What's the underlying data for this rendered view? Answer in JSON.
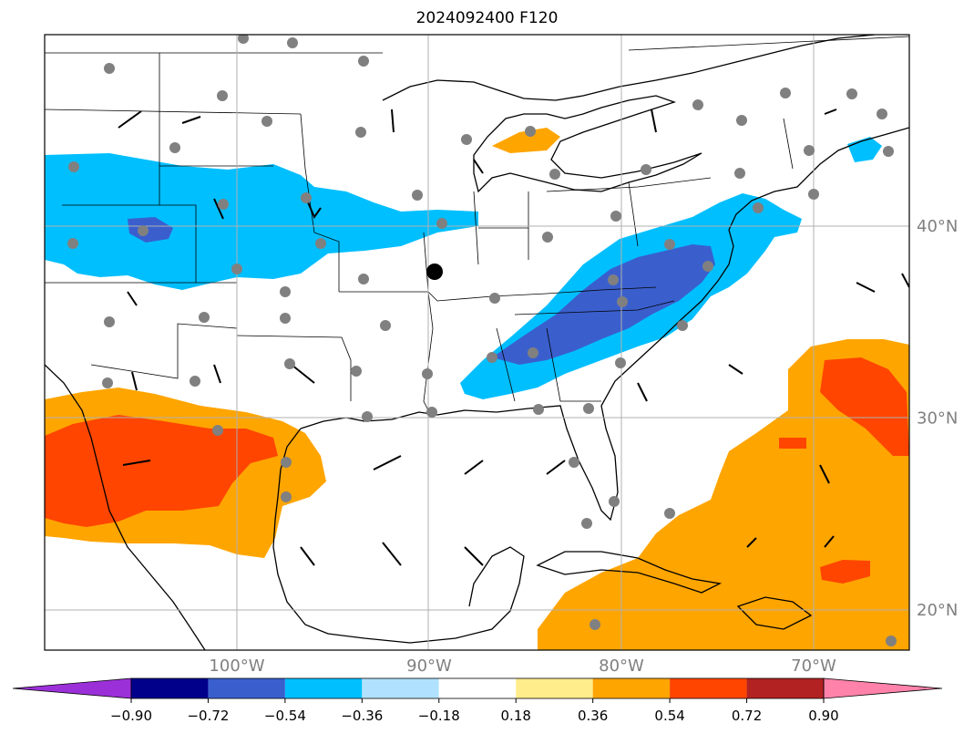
{
  "title": "2024092400 F120",
  "lat_labels": [
    {
      "lat": 40,
      "label": "40°N"
    },
    {
      "lat": 30,
      "label": "30°N"
    },
    {
      "lat": 20,
      "label": "20°N"
    }
  ],
  "lon_labels": [
    {
      "lon": -100,
      "label": "100°W"
    },
    {
      "lon": -90,
      "label": "90°W"
    },
    {
      "lon": -80,
      "label": "80°W"
    },
    {
      "lon": -70,
      "label": "70°W"
    }
  ],
  "colorbar": {
    "ticks": [
      "−0.90",
      "−0.72",
      "−0.54",
      "−0.36",
      "−0.18",
      "0.18",
      "0.36",
      "0.54",
      "0.72",
      "0.90"
    ],
    "colors": [
      "#9b30d9",
      "#00008b",
      "#3a5fcd",
      "#00bfff",
      "#b0e2ff",
      "#ffffff",
      "#ffec8b",
      "#ffa500",
      "#ff4500",
      "#b22222",
      "#ff82ab"
    ]
  },
  "colors": {
    "negative_light": "#00bfff",
    "negative_mid": "#3a5fcd",
    "positive_light": "#ffec8b",
    "positive_mid": "#ffa500",
    "positive_high": "#ff4500",
    "station": "#808080",
    "grid": "#b0b0b0"
  }
}
